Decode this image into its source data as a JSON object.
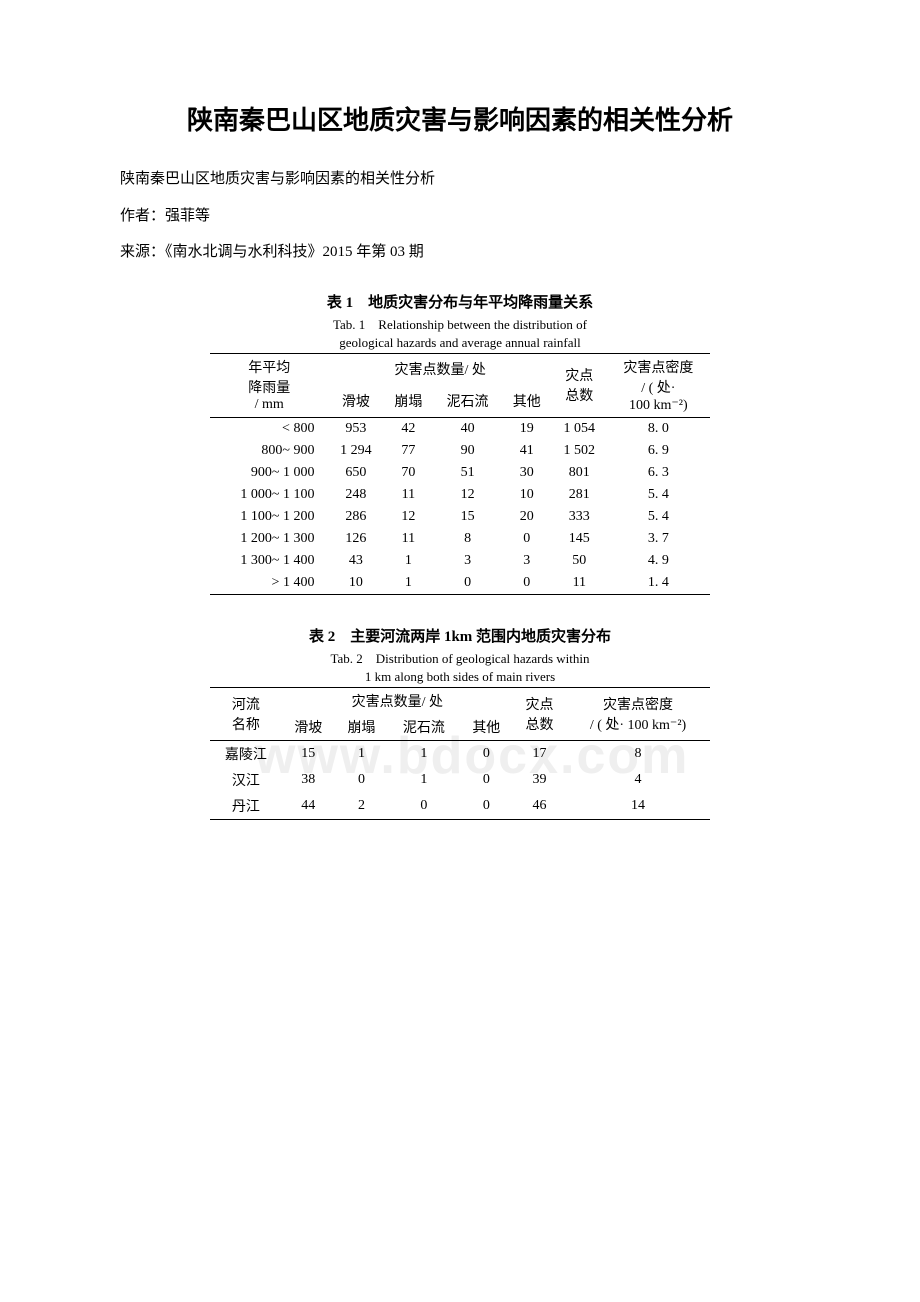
{
  "title": "陕南秦巴山区地质灾害与影响因素的相关性分析",
  "subtitle": "陕南秦巴山区地质灾害与影响因素的相关性分析",
  "author_line": "作者：强菲等",
  "source_line": "来源：《南水北调与水利科技》2015 年第 03 期",
  "watermark_text": "www.bdocx.com",
  "table1": {
    "title_cn": "表 1　地质灾害分布与年平均降雨量关系",
    "title_en_1": "Tab. 1　Relationship between the distribution of",
    "title_en_2": "geological hazards and average annual rainfall",
    "header": {
      "col1_line1": "年平均",
      "col1_line2": "降雨量",
      "col1_line3": "/ mm",
      "group_label": "灾害点数量/ 处",
      "sub1": "滑坡",
      "sub2": "崩塌",
      "sub3": "泥石流",
      "sub4": "其他",
      "col_total_line1": "灾点",
      "col_total_line2": "总数",
      "col_density_line1": "灾害点密度",
      "col_density_line2": "/ ( 处·",
      "col_density_line3": "100 km⁻²)"
    },
    "rows": [
      {
        "range": "< 800",
        "hp": "953",
        "bt": "42",
        "ns": "40",
        "qt": "19",
        "total": "1 054",
        "density": "8. 0"
      },
      {
        "range": "800~ 900",
        "hp": "1 294",
        "bt": "77",
        "ns": "90",
        "qt": "41",
        "total": "1 502",
        "density": "6. 9"
      },
      {
        "range": "900~ 1 000",
        "hp": "650",
        "bt": "70",
        "ns": "51",
        "qt": "30",
        "total": "801",
        "density": "6. 3"
      },
      {
        "range": "1 000~ 1 100",
        "hp": "248",
        "bt": "11",
        "ns": "12",
        "qt": "10",
        "total": "281",
        "density": "5. 4"
      },
      {
        "range": "1 100~ 1 200",
        "hp": "286",
        "bt": "12",
        "ns": "15",
        "qt": "20",
        "total": "333",
        "density": "5. 4"
      },
      {
        "range": "1 200~ 1 300",
        "hp": "126",
        "bt": "11",
        "ns": "8",
        "qt": "0",
        "total": "145",
        "density": "3. 7"
      },
      {
        "range": "1 300~ 1 400",
        "hp": "43",
        "bt": "1",
        "ns": "3",
        "qt": "3",
        "total": "50",
        "density": "4. 9"
      },
      {
        "range": "> 1 400",
        "hp": "10",
        "bt": "1",
        "ns": "0",
        "qt": "0",
        "total": "11",
        "density": "1. 4"
      }
    ],
    "col_widths": [
      "110px",
      "55px",
      "45px",
      "55px",
      "45px",
      "60px",
      "100px"
    ],
    "font_size": 14,
    "border_color": "#000000",
    "background_color": "#ffffff"
  },
  "table2": {
    "title_cn": "表 2　主要河流两岸 1km 范围内地质灾害分布",
    "title_en_1": "Tab. 2　Distribution of geological hazards within",
    "title_en_2": "1 km along both sides of main rivers",
    "header": {
      "col1_line1": "河流",
      "col1_line2": "名称",
      "group_label": "灾害点数量/ 处",
      "sub1": "滑坡",
      "sub2": "崩塌",
      "sub3": "泥石流",
      "sub4": "其他",
      "col_total_line1": "灾点",
      "col_total_line2": "总数",
      "col_density_line1": "灾害点密度",
      "col_density_line2": "/ ( 处· 100 km⁻²)"
    },
    "rows": [
      {
        "name": "嘉陵江",
        "hp": "15",
        "bt": "1",
        "ns": "1",
        "qt": "0",
        "total": "17",
        "density": "8"
      },
      {
        "name": "汉江",
        "hp": "38",
        "bt": "0",
        "ns": "1",
        "qt": "0",
        "total": "39",
        "density": "4"
      },
      {
        "name": "丹江",
        "hp": "44",
        "bt": "2",
        "ns": "0",
        "qt": "0",
        "total": "46",
        "density": "14"
      }
    ],
    "col_widths": [
      "80px",
      "50px",
      "50px",
      "55px",
      "45px",
      "55px",
      "140px"
    ],
    "font_size": 14,
    "border_color": "#000000",
    "background_color": "#ffffff"
  }
}
